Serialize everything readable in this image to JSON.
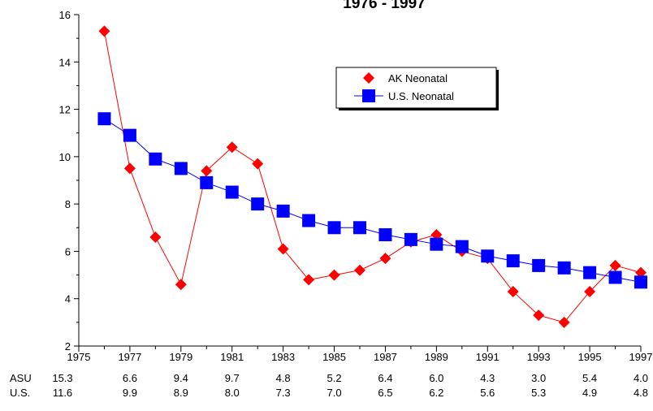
{
  "chart_data": {
    "type": "line",
    "title": "1976 - 1997",
    "xlabel": "",
    "ylabel": "",
    "xlim": [
      1975,
      1997
    ],
    "ylim": [
      2,
      16
    ],
    "x_ticks": [
      "1975",
      "1977",
      "1979",
      "1981",
      "1983",
      "1985",
      "1987",
      "1989",
      "1991",
      "1993",
      "1995",
      "1997"
    ],
    "y_ticks": [
      "2",
      "4",
      "6",
      "8",
      "10",
      "12",
      "14",
      "16"
    ],
    "legend_position": "top-right",
    "x": [
      1976,
      1977,
      1978,
      1979,
      1980,
      1981,
      1982,
      1983,
      1984,
      1985,
      1986,
      1987,
      1988,
      1989,
      1990,
      1991,
      1992,
      1993,
      1994,
      1995,
      1996,
      1997
    ],
    "series": [
      {
        "name": "AK Neonatal",
        "color": "#ff0000",
        "marker": "diamond",
        "values": [
          15.3,
          9.5,
          6.6,
          4.6,
          9.4,
          10.4,
          9.7,
          6.1,
          4.8,
          5.0,
          5.2,
          5.7,
          6.4,
          6.7,
          6.0,
          5.7,
          4.3,
          3.3,
          3.0,
          4.3,
          5.4,
          5.1
        ]
      },
      {
        "name": "U.S. Neonatal",
        "color": "#0000ff",
        "marker": "square",
        "values": [
          11.6,
          10.9,
          9.9,
          9.5,
          8.9,
          8.5,
          8.0,
          7.7,
          7.3,
          7.0,
          7.0,
          6.7,
          6.5,
          6.3,
          6.2,
          5.8,
          5.6,
          5.4,
          5.3,
          5.1,
          4.9,
          4.7
        ]
      }
    ],
    "table": {
      "rows": [
        {
          "label": "ASU",
          "values": [
            "15.3",
            "6.6",
            "9.4",
            "9.7",
            "4.8",
            "5.2",
            "6.4",
            "6.0",
            "4.3",
            "3.0",
            "5.4",
            "4.0"
          ]
        },
        {
          "label": "U.S.",
          "values": [
            "11.6",
            "9.9",
            "8.9",
            "8.0",
            "7.3",
            "7.0",
            "6.5",
            "6.2",
            "5.6",
            "5.3",
            "4.9",
            "4.8"
          ]
        }
      ]
    }
  }
}
